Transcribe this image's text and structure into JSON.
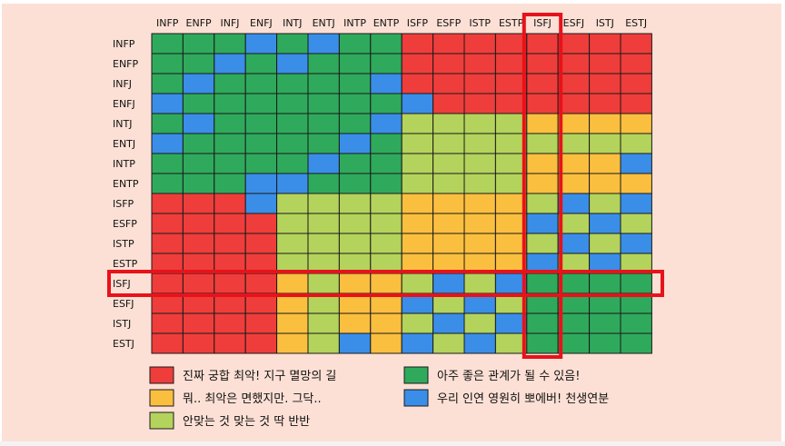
{
  "chart_data": {
    "type": "heatmap",
    "title": "",
    "xlabel": "",
    "ylabel": "",
    "x_categories": [
      "INFP",
      "ENFP",
      "INFJ",
      "ENFJ",
      "INTJ",
      "ENTJ",
      "INTP",
      "ENTP",
      "ISFP",
      "ESFP",
      "ISTP",
      "ESTP",
      "ISFJ",
      "ESFJ",
      "ISTJ",
      "ESTJ"
    ],
    "y_categories": [
      "INFP",
      "ENFP",
      "INFJ",
      "ENFJ",
      "INTJ",
      "ENTJ",
      "INTP",
      "ENTP",
      "ISFP",
      "ESFP",
      "ISTP",
      "ESTP",
      "ISFJ",
      "ESFJ",
      "ISTJ",
      "ESTJ"
    ],
    "levels": {
      "1": {
        "label": "진짜 궁합 최악! 지구 멸망의 길",
        "color": "#ef3d3b"
      },
      "2": {
        "label": "뭐.. 최악은 면했지만. 그닥..",
        "color": "#fbbf3f"
      },
      "3": {
        "label": "안맞는 것 맞는 것 딱 반반",
        "color": "#b4d35c"
      },
      "4": {
        "label": "아주 좋은 관계가 될 수 있음!",
        "color": "#2faa5c"
      },
      "5": {
        "label": "우리 인연 영원히 뽀에버! 천생연분",
        "color": "#3a8ee8"
      }
    },
    "legend_order": [
      1,
      4,
      2,
      5,
      3
    ],
    "matrix": [
      [
        4,
        4,
        4,
        5,
        4,
        5,
        4,
        4,
        1,
        1,
        1,
        1,
        1,
        1,
        1,
        1
      ],
      [
        4,
        4,
        5,
        4,
        5,
        4,
        4,
        4,
        1,
        1,
        1,
        1,
        1,
        1,
        1,
        1
      ],
      [
        4,
        5,
        4,
        4,
        4,
        4,
        4,
        5,
        1,
        1,
        1,
        1,
        1,
        1,
        1,
        1
      ],
      [
        5,
        4,
        4,
        4,
        4,
        4,
        4,
        4,
        5,
        1,
        1,
        1,
        1,
        1,
        1,
        1
      ],
      [
        4,
        5,
        4,
        4,
        4,
        4,
        4,
        5,
        3,
        3,
        3,
        3,
        2,
        2,
        2,
        2
      ],
      [
        5,
        4,
        4,
        4,
        4,
        4,
        5,
        4,
        3,
        3,
        3,
        3,
        3,
        3,
        3,
        3
      ],
      [
        4,
        4,
        4,
        4,
        4,
        5,
        4,
        4,
        3,
        3,
        3,
        3,
        2,
        2,
        2,
        5
      ],
      [
        4,
        4,
        4,
        5,
        5,
        4,
        4,
        4,
        3,
        3,
        3,
        3,
        2,
        2,
        2,
        2
      ],
      [
        1,
        1,
        1,
        5,
        3,
        3,
        3,
        3,
        2,
        2,
        2,
        2,
        3,
        5,
        3,
        5
      ],
      [
        1,
        1,
        1,
        1,
        3,
        3,
        3,
        3,
        2,
        2,
        2,
        2,
        5,
        3,
        5,
        3
      ],
      [
        1,
        1,
        1,
        1,
        3,
        3,
        3,
        3,
        2,
        2,
        2,
        2,
        3,
        5,
        3,
        5
      ],
      [
        1,
        1,
        1,
        1,
        3,
        3,
        3,
        3,
        2,
        2,
        2,
        2,
        5,
        3,
        5,
        3
      ],
      [
        1,
        1,
        1,
        1,
        2,
        3,
        2,
        2,
        3,
        5,
        3,
        5,
        4,
        4,
        4,
        4
      ],
      [
        1,
        1,
        1,
        1,
        2,
        3,
        2,
        2,
        5,
        3,
        5,
        3,
        4,
        4,
        4,
        4
      ],
      [
        1,
        1,
        1,
        1,
        2,
        3,
        2,
        2,
        3,
        5,
        3,
        5,
        4,
        4,
        4,
        4
      ],
      [
        1,
        1,
        1,
        1,
        2,
        3,
        5,
        2,
        5,
        3,
        5,
        3,
        4,
        4,
        4,
        4
      ]
    ],
    "highlight": {
      "column": "ISFJ",
      "row": "ISFJ",
      "color": "#e8121a"
    },
    "grid": true,
    "legend_placement": "bottom"
  }
}
